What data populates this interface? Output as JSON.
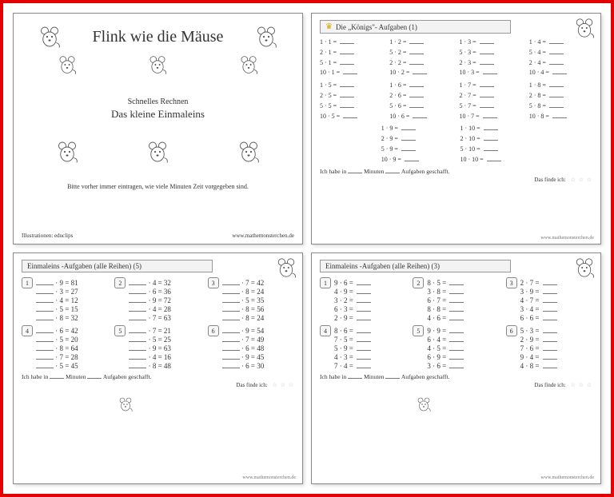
{
  "cover": {
    "title": "Flink wie die Mäuse",
    "subtitle1": "Schnelles Rechnen",
    "subtitle2": "Das kleine Einmaleins",
    "note": "Bitte vorher immer eintragen, wie viele Minuten Zeit vorgegeben sind.",
    "illustrations": "Illustrationen: educlips",
    "site": "www.mathemonsterchen.de"
  },
  "konigs": {
    "header": "Die „Königs\"- Aufgaben (1)",
    "block1": [
      [
        "1 · 1 =",
        "1 · 2 =",
        "1 · 3 =",
        "1 · 4 ="
      ],
      [
        "2 · 1 =",
        "5 · 2 =",
        "5 · 3 =",
        "5 · 4 ="
      ],
      [
        "5 · 1 =",
        "2 · 2 =",
        "2 · 3 =",
        "2 · 4 ="
      ],
      [
        "10 · 1 =",
        "10 · 2 =",
        "10 · 3 =",
        "10 · 4 ="
      ]
    ],
    "block2": [
      [
        "1 · 5 =",
        "1 · 6 =",
        "1 · 7 =",
        "1 · 8 ="
      ],
      [
        "2 · 5 =",
        "2 · 6 =",
        "2 · 7 =",
        "2 · 8 ="
      ],
      [
        "5 · 5 =",
        "5 · 6 =",
        "5 · 7 =",
        "5 · 8 ="
      ],
      [
        "10 · 5 =",
        "10 · 6 =",
        "10 · 7 =",
        "10 · 8 ="
      ]
    ],
    "block3": [
      [
        "1 · 9 =",
        "1 · 10 ="
      ],
      [
        "2 · 9 =",
        "2 · 10 ="
      ],
      [
        "5 · 9 =",
        "5 · 10 ="
      ],
      [
        "10 · 9 =",
        "10 · 10 ="
      ]
    ],
    "footer1": "Ich habe in ___ Minuten ___ Aufgaben geschafft.",
    "footer2": "Das finde ich:",
    "site": "www.mathemonsterchen.de"
  },
  "ws5": {
    "header": "Einmaleins -Aufgaben (alle Reihen) (5)",
    "sections": [
      {
        "num": "1",
        "items": [
          "· 9 = 81",
          "· 3 = 27",
          "· 4 = 12",
          "· 5 = 15",
          "· 8 = 32"
        ]
      },
      {
        "num": "2",
        "items": [
          "· 4 = 32",
          "· 6 = 36",
          "· 9 = 72",
          "· 4 = 28",
          "· 7 = 63"
        ]
      },
      {
        "num": "3",
        "items": [
          "· 7 = 42",
          "· 8 = 24",
          "· 5 = 35",
          "· 8 = 56",
          "· 8 = 24"
        ]
      },
      {
        "num": "4",
        "items": [
          "· 6 = 42",
          "· 5 = 20",
          "· 8 = 64",
          "· 7 = 28",
          "· 5 = 45"
        ]
      },
      {
        "num": "5",
        "items": [
          "· 7 = 21",
          "· 5 = 25",
          "· 9 = 63",
          "· 4 = 16",
          "· 8 = 48"
        ]
      },
      {
        "num": "6",
        "items": [
          "· 9 = 54",
          "· 7 = 49",
          "· 6 = 48",
          "· 9 = 45",
          "· 6 = 30"
        ]
      }
    ],
    "footer1": "Ich habe in ___ Minuten ___ Aufgaben geschafft.",
    "footer2": "Das finde ich:",
    "site": "www.mathemonsterchen.de"
  },
  "ws3": {
    "header": "Einmaleins -Aufgaben (alle Reihen) (3)",
    "sections": [
      {
        "num": "1",
        "items": [
          "9 · 6 =",
          "4 · 9 =",
          "3 · 2 =",
          "6 · 3 =",
          "2 · 9 ="
        ]
      },
      {
        "num": "2",
        "items": [
          "8 · 5 =",
          "3 · 8 =",
          "6 · 7 =",
          "8 · 8 =",
          "4 · 6 ="
        ]
      },
      {
        "num": "3",
        "items": [
          "2 · 7 =",
          "3 · 9 =",
          "4 · 7 =",
          "3 · 4 =",
          "6 · 6 ="
        ]
      },
      {
        "num": "4",
        "items": [
          "8 · 6 =",
          "7 · 5 =",
          "5 · 9 =",
          "4 · 3 =",
          "7 · 4 ="
        ]
      },
      {
        "num": "5",
        "items": [
          "9 · 9 =",
          "6 · 4 =",
          "4 · 5 =",
          "6 · 9 =",
          "3 · 6 ="
        ]
      },
      {
        "num": "6",
        "items": [
          "5 · 3 =",
          "2 · 9 =",
          "7 · 6 =",
          "9 · 4 =",
          "4 · 8 ="
        ]
      }
    ],
    "footer1": "Ich habe in ___ Minuten ___ Aufgaben geschafft.",
    "footer2": "Das finde ich:",
    "site": "www.mathemonsterchen.de"
  }
}
